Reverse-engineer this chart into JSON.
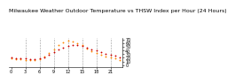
{
  "title": "Milwaukee Weather Outdoor Temperature vs THSW Index per Hour (24 Hours)",
  "hours": [
    0,
    1,
    2,
    3,
    4,
    5,
    6,
    7,
    8,
    9,
    10,
    11,
    12,
    13,
    14,
    15,
    16,
    17,
    18,
    19,
    20,
    21,
    22,
    23
  ],
  "temp": [
    20,
    19,
    18,
    18,
    17,
    17,
    18,
    22,
    28,
    35,
    42,
    48,
    52,
    55,
    54,
    52,
    48,
    44,
    40,
    36,
    32,
    28,
    25,
    22
  ],
  "thsw": [
    18,
    17,
    16,
    15,
    14,
    14,
    16,
    24,
    33,
    43,
    54,
    62,
    68,
    65,
    60,
    54,
    46,
    39,
    33,
    28,
    24,
    21,
    18,
    15
  ],
  "temp_color": "#cc0000",
  "thsw_color": "#ff8800",
  "bg_color": "#ffffff",
  "grid_color": "#999999",
  "ylim": [
    -5,
    75
  ],
  "ytick_positions": [
    0,
    10,
    20,
    30,
    40,
    50,
    60,
    70
  ],
  "ytick_labels": [
    "0",
    "10",
    "20",
    "30",
    "40",
    "50",
    "60",
    "70"
  ],
  "xtick_positions": [
    0,
    3,
    6,
    9,
    12,
    15,
    18,
    21
  ],
  "xtick_labels": [
    "0",
    "3",
    "6",
    "9",
    "12",
    "15",
    "18",
    "21"
  ],
  "vgrid_positions": [
    3,
    6,
    9,
    12,
    15,
    18,
    21
  ],
  "title_fontsize": 4.5,
  "tick_fontsize": 3.5,
  "marker_size": 1.8
}
